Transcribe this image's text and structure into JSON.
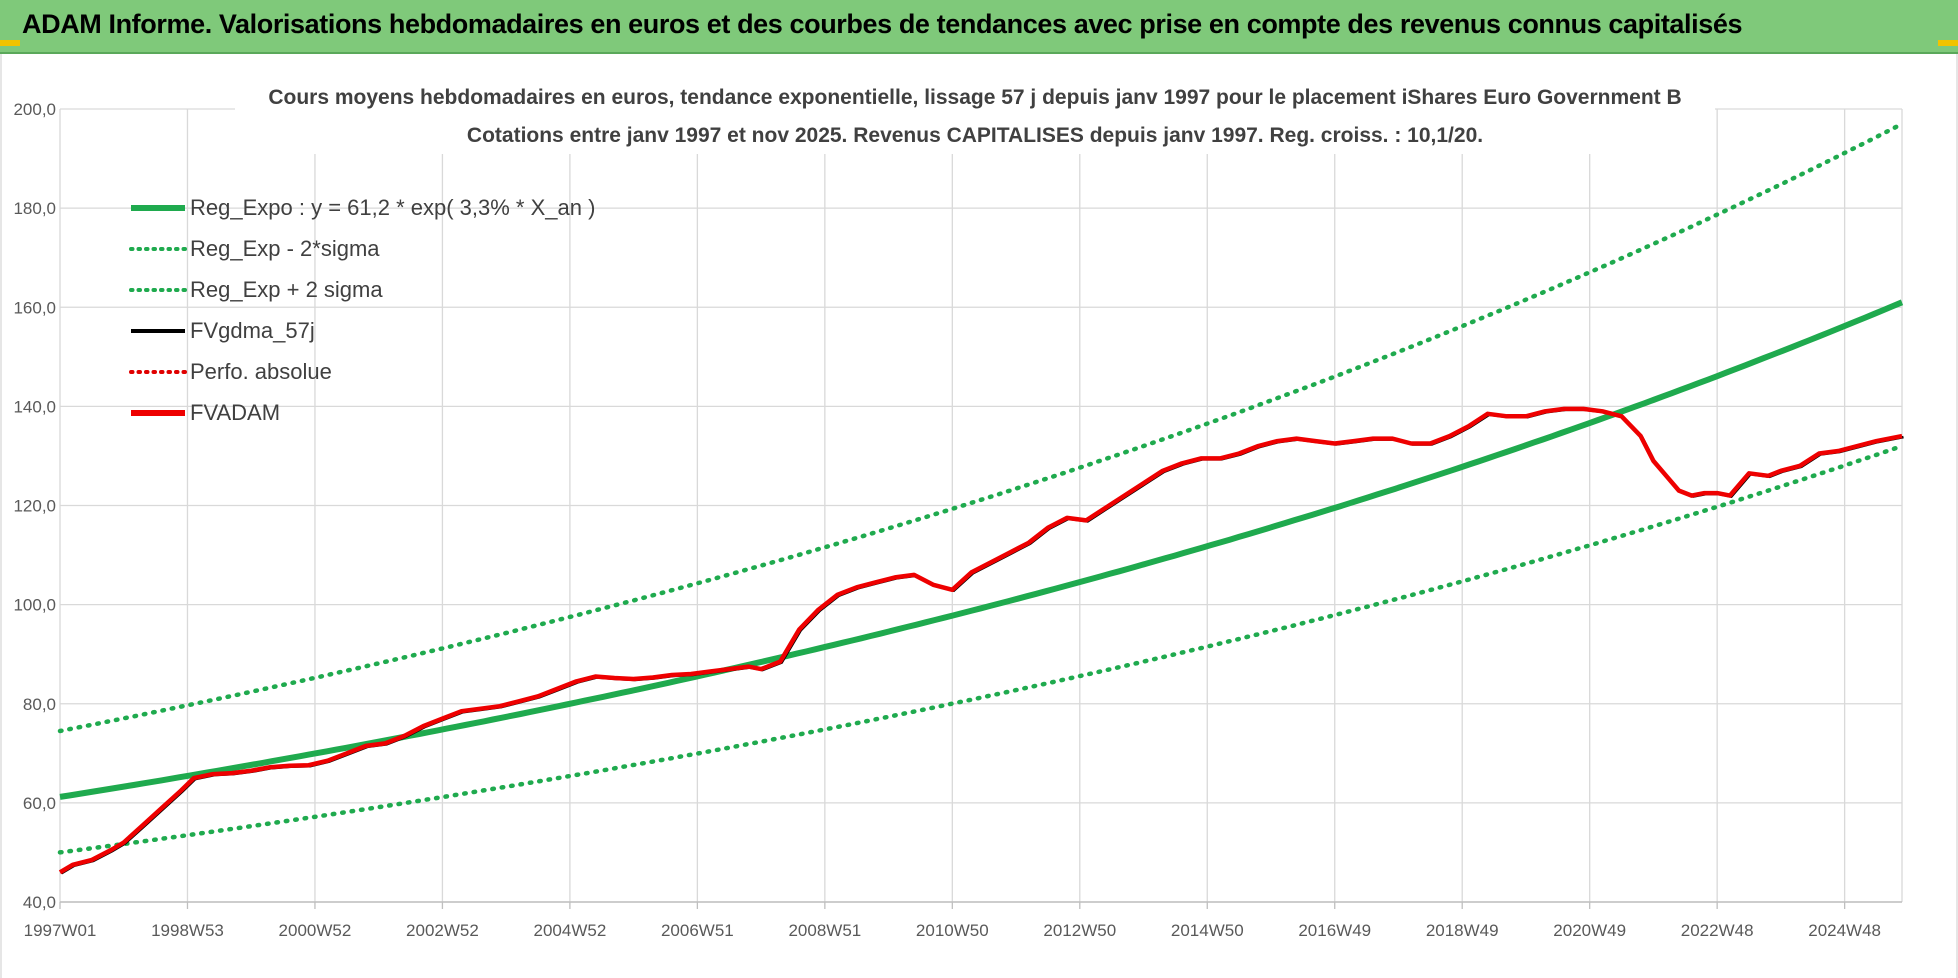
{
  "banner": {
    "title": "ADAM Informe. Valorisations hebdomadaires en euros et des courbes de tendances avec prise en compte des revenus connus capitalisés"
  },
  "colors": {
    "banner": "#7fc97a",
    "trend": "#1faa4e",
    "sigma": "#1faa4e",
    "fvgdma": "#000000",
    "perfo": "#e00000",
    "fvadam": "#ee0000",
    "grid": "#d9d9d9"
  },
  "chart_data": {
    "type": "line",
    "title": "Cours moyens hebdomadaires en euros, tendance exponentielle, lissage 57 j depuis janv 1997 pour le placement iShares Euro Government B",
    "subtitle": "Cotations entre janv 1997 et nov 2025. Revenus CAPITALISES depuis janv 1997. Reg. croiss. : 10,1/20.",
    "xlabel": "",
    "ylabel": "",
    "xlim": [
      1997.0,
      2025.9
    ],
    "ylim": [
      40,
      200
    ],
    "y_ticks": [
      "40,0",
      "60,0",
      "80,0",
      "100,0",
      "120,0",
      "140,0",
      "160,0",
      "180,0",
      "200,0"
    ],
    "x_ticks": [
      {
        "x": 1997.0,
        "label": "1997W01"
      },
      {
        "x": 1999.0,
        "label": "1998W53"
      },
      {
        "x": 2001.0,
        "label": "2000W52"
      },
      {
        "x": 2003.0,
        "label": "2002W52"
      },
      {
        "x": 2005.0,
        "label": "2004W52"
      },
      {
        "x": 2007.0,
        "label": "2006W51"
      },
      {
        "x": 2009.0,
        "label": "2008W51"
      },
      {
        "x": 2011.0,
        "label": "2010W50"
      },
      {
        "x": 2013.0,
        "label": "2012W50"
      },
      {
        "x": 2015.0,
        "label": "2014W50"
      },
      {
        "x": 2017.0,
        "label": "2016W49"
      },
      {
        "x": 2019.0,
        "label": "2018W49"
      },
      {
        "x": 2021.0,
        "label": "2020W49"
      },
      {
        "x": 2023.0,
        "label": "2022W48"
      },
      {
        "x": 2025.0,
        "label": "2024W48"
      }
    ],
    "grid": true,
    "legend_position": "top-left",
    "legend": [
      {
        "name": "Reg_Expo : y = 61,2 * exp( 3,3% *  X_an )",
        "style": "solid-thick",
        "color": "#1faa4e"
      },
      {
        "name": "Reg_Exp - 2*sigma",
        "style": "dotted",
        "color": "#1faa4e"
      },
      {
        "name": "Reg_Exp + 2 sigma",
        "style": "dotted",
        "color": "#1faa4e"
      },
      {
        "name": "FVgdma_57j",
        "style": "solid",
        "color": "#000000"
      },
      {
        "name": "Perfo. absolue",
        "style": "dotted",
        "color": "#e00000"
      },
      {
        "name": "FVADAM",
        "style": "solid-thick",
        "color": "#ee0000"
      }
    ],
    "series": [
      {
        "name": "Reg_Expo",
        "x": [
          1997.0,
          2025.9
        ],
        "values": [
          61.2,
          161.0
        ],
        "curve": "exponential"
      },
      {
        "name": "Reg_Exp - 2*sigma",
        "x": [
          1997.0,
          2025.9
        ],
        "values": [
          50.0,
          132.0
        ],
        "curve": "exponential"
      },
      {
        "name": "Reg_Exp + 2 sigma",
        "x": [
          1997.0,
          2025.9
        ],
        "values": [
          74.5,
          197.0
        ],
        "curve": "exponential"
      },
      {
        "name": "FVADAM",
        "x": [
          1997.0,
          1997.2,
          1997.5,
          1997.8,
          1998.0,
          1998.3,
          1998.6,
          1998.9,
          1999.1,
          1999.4,
          1999.7,
          2000.0,
          2000.3,
          2000.6,
          2000.9,
          2001.2,
          2001.5,
          2001.8,
          2002.1,
          2002.4,
          2002.7,
          2003.0,
          2003.3,
          2003.6,
          2003.9,
          2004.2,
          2004.5,
          2004.8,
          2005.1,
          2005.4,
          2005.7,
          2006.0,
          2006.3,
          2006.6,
          2006.9,
          2007.2,
          2007.5,
          2007.8,
          2008.0,
          2008.3,
          2008.6,
          2008.9,
          2009.2,
          2009.5,
          2009.8,
          2010.1,
          2010.4,
          2010.7,
          2011.0,
          2011.3,
          2011.6,
          2011.9,
          2012.2,
          2012.5,
          2012.8,
          2013.1,
          2013.4,
          2013.7,
          2014.0,
          2014.3,
          2014.6,
          2014.9,
          2015.2,
          2015.5,
          2015.8,
          2016.1,
          2016.4,
          2016.7,
          2017.0,
          2017.3,
          2017.6,
          2017.9,
          2018.2,
          2018.5,
          2018.8,
          2019.1,
          2019.4,
          2019.7,
          2020.0,
          2020.3,
          2020.6,
          2020.9,
          2021.2,
          2021.5,
          2021.8,
          2022.0,
          2022.2,
          2022.4,
          2022.6,
          2022.8,
          2023.0,
          2023.2,
          2023.5,
          2023.8,
          2024.0,
          2024.3,
          2024.6,
          2024.9,
          2025.2,
          2025.5,
          2025.9
        ],
        "values": [
          46.0,
          47.5,
          48.5,
          50.5,
          52.0,
          55.5,
          59.0,
          62.5,
          65.0,
          65.8,
          66.0,
          66.5,
          67.2,
          67.5,
          67.6,
          68.5,
          70.0,
          71.5,
          72.0,
          73.5,
          75.5,
          77.0,
          78.5,
          79.0,
          79.5,
          80.5,
          81.5,
          83.0,
          84.5,
          85.5,
          85.2,
          85.0,
          85.3,
          85.8,
          86.0,
          86.5,
          87.0,
          87.5,
          87.0,
          88.5,
          95.0,
          99.0,
          102.0,
          103.5,
          104.5,
          105.5,
          106.0,
          104.0,
          103.0,
          106.5,
          108.5,
          110.5,
          112.5,
          115.5,
          117.5,
          117.0,
          119.5,
          122.0,
          124.5,
          127.0,
          128.5,
          129.5,
          129.5,
          130.5,
          132.0,
          133.0,
          133.5,
          133.0,
          132.5,
          133.0,
          133.5,
          133.5,
          132.5,
          132.5,
          134.0,
          136.0,
          138.5,
          138.0,
          138.0,
          139.0,
          139.5,
          139.5,
          139.0,
          138.0,
          134.0,
          129.0,
          126.0,
          123.0,
          122.0,
          122.5,
          122.5,
          122.0,
          126.5,
          126.0,
          127.0,
          128.0,
          130.5,
          131.0,
          132.0,
          133.0,
          134.0
        ]
      }
    ]
  }
}
